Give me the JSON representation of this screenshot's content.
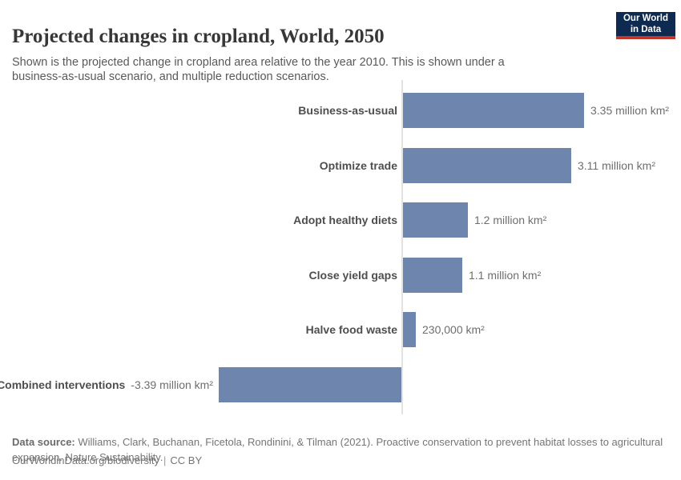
{
  "header": {
    "title": "Projected changes in cropland, World, 2050",
    "subtitle": "Shown is the projected change in cropland area relative to the year 2010. This is shown under a business-as-usual scenario, and multiple reduction scenarios.",
    "logo": {
      "line1": "Our World",
      "line2": "in Data"
    }
  },
  "chart_data": {
    "type": "bar",
    "orientation": "horizontal",
    "categories": [
      "Business-as-usual",
      "Optimize trade",
      "Adopt healthy diets",
      "Close yield gaps",
      "Halve food waste",
      "Combined interventions"
    ],
    "values": [
      3.35,
      3.11,
      1.2,
      1.1,
      0.23,
      -3.39
    ],
    "value_labels": [
      "3.35 million km²",
      "3.11 million km²",
      "1.2 million km²",
      "1.1 million km²",
      "230,000 km²",
      "-3.39 million km²"
    ],
    "unit": "million km²",
    "xlim": [
      -3.39,
      3.35
    ],
    "baseline": 0,
    "grid": false,
    "legend": "none",
    "bar_color": "#6e85ad",
    "axis_color": "#e2e2e2"
  },
  "footer": {
    "datasource_label": "Data source:",
    "datasource_text": " Williams, Clark, Buchanan, Ficetola, Rondinini, & Tilman (2021). Proactive conservation to prevent habitat losses to agricultural expansion. Nature Sustainability.",
    "url": "OurWorldinData.org/biodiversity",
    "separator": "|",
    "license": "CC BY"
  }
}
